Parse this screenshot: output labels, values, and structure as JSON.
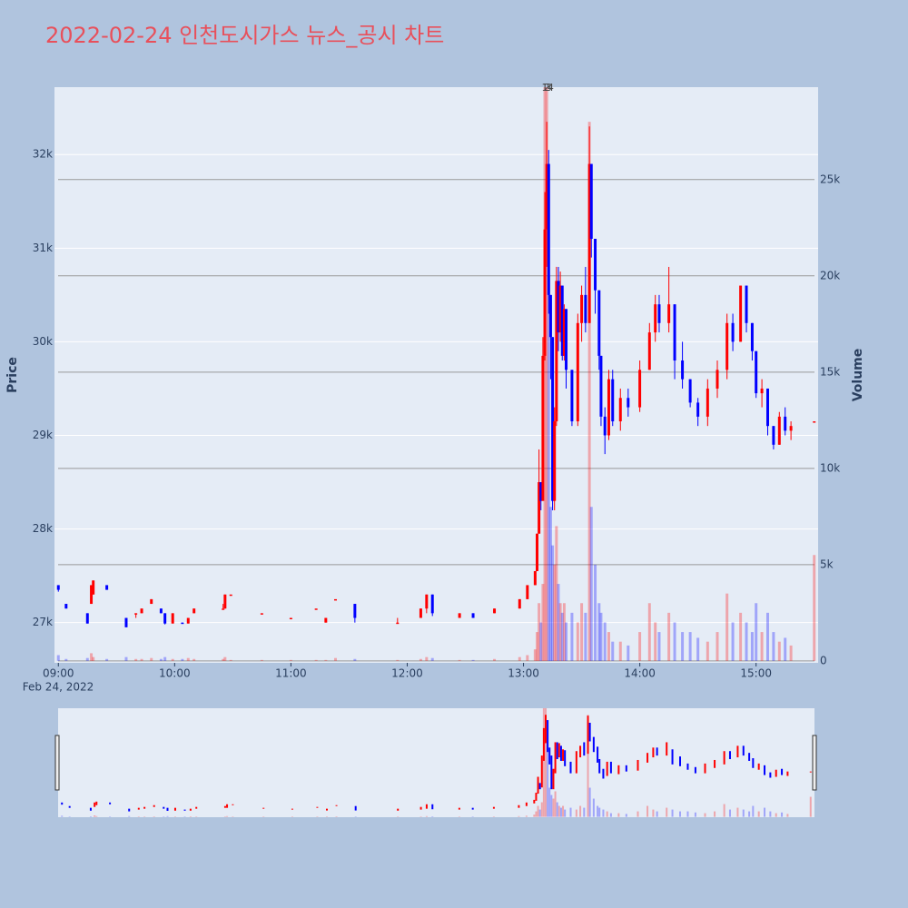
{
  "chart_data": {
    "type": "candlestick",
    "title": "2022-02-24 인천도시가스 뉴스_공시 차트",
    "y_title": "Price",
    "y2_title": "Volume",
    "x_date_label": "Feb 24, 2022",
    "increasing_color": "#ff0000",
    "decreasing_color": "#0000ff",
    "x": [
      "09:00",
      "09:04",
      "09:15",
      "09:17",
      "09:18",
      "09:25",
      "09:35",
      "09:40",
      "09:43",
      "09:48",
      "09:53",
      "09:55",
      "09:59",
      "10:04",
      "10:07",
      "10:10",
      "10:25",
      "10:26",
      "10:29",
      "10:45",
      "11:00",
      "11:13",
      "11:18",
      "11:23",
      "11:33",
      "11:55",
      "12:07",
      "12:10",
      "12:13",
      "12:27",
      "12:34",
      "12:45",
      "12:58",
      "13:02",
      "13:06",
      "13:07",
      "13:08",
      "13:09",
      "13:10",
      "13:11",
      "13:12",
      "13:13",
      "13:14",
      "13:15",
      "13:16",
      "13:17",
      "13:18",
      "13:19",
      "13:20",
      "13:21",
      "13:22",
      "13:25",
      "13:28",
      "13:30",
      "13:32",
      "13:34",
      "13:35",
      "13:37",
      "13:39",
      "13:40",
      "13:42",
      "13:44",
      "13:46",
      "13:50",
      "13:54",
      "14:00",
      "14:05",
      "14:08",
      "14:10",
      "14:15",
      "14:18",
      "14:22",
      "14:26",
      "14:30",
      "14:35",
      "14:40",
      "14:45",
      "14:48",
      "14:52",
      "14:55",
      "14:58",
      "15:00",
      "15:03",
      "15:06",
      "15:09",
      "15:12",
      "15:15",
      "15:18",
      "15:30"
    ],
    "open": [
      27400,
      27200,
      27100,
      27200,
      27300,
      27400,
      27050,
      27100,
      27100,
      27200,
      27150,
      27100,
      26990,
      27000,
      26990,
      27100,
      27150,
      27150,
      27300,
      27100,
      27050,
      27150,
      27000,
      27250,
      27200,
      27000,
      27050,
      27150,
      27300,
      27050,
      27100,
      27100,
      27150,
      27250,
      27400,
      27550,
      27950,
      28500,
      28300,
      29850,
      31200,
      31900,
      30500,
      30050,
      28300,
      29150,
      30650,
      30100,
      30600,
      29850,
      30350,
      29700,
      29150,
      30200,
      30500,
      30200,
      31900,
      31100,
      30550,
      29850,
      29200,
      29000,
      29600,
      29150,
      29400,
      29300,
      29700,
      30100,
      30400,
      30200,
      30400,
      29800,
      29600,
      29350,
      29200,
      29500,
      29700,
      30200,
      30000,
      30600,
      30200,
      29900,
      29450,
      29500,
      29100,
      28900,
      29200,
      29050,
      29150
    ],
    "high": [
      27400,
      27200,
      27100,
      27400,
      27450,
      27400,
      27050,
      27100,
      27150,
      27250,
      27150,
      27100,
      27100,
      27000,
      27050,
      27150,
      27200,
      27300,
      27300,
      27100,
      27050,
      27150,
      27050,
      27250,
      27200,
      27050,
      27150,
      27300,
      27300,
      27100,
      27100,
      27150,
      27250,
      27400,
      27550,
      27950,
      28850,
      28500,
      30050,
      31600,
      32350,
      32050,
      30500,
      30050,
      29300,
      30800,
      30800,
      30750,
      30600,
      30400,
      30350,
      29700,
      30300,
      30600,
      30800,
      32300,
      31900,
      31100,
      30550,
      29850,
      29300,
      29700,
      29700,
      29500,
      29500,
      29800,
      30200,
      30500,
      30500,
      30800,
      30400,
      30000,
      29600,
      29400,
      29600,
      29800,
      30300,
      30300,
      30600,
      30600,
      30200,
      29900,
      29600,
      29500,
      29100,
      29250,
      29300,
      29150,
      29150
    ],
    "low": [
      27330,
      27150,
      26990,
      27200,
      27300,
      27350,
      26950,
      27050,
      27100,
      27200,
      27100,
      26980,
      26990,
      26990,
      26990,
      27100,
      27150,
      27150,
      27300,
      27100,
      27050,
      27150,
      27000,
      27250,
      27000,
      26990,
      27050,
      27100,
      27070,
      27050,
      27050,
      27100,
      27150,
      27250,
      27400,
      27550,
      27950,
      28200,
      28300,
      29800,
      30800,
      30300,
      29600,
      28200,
      28200,
      29100,
      29900,
      30000,
      29800,
      29800,
      29500,
      29100,
      29100,
      30000,
      30100,
      30200,
      30900,
      30300,
      29700,
      29100,
      28800,
      28950,
      29100,
      29050,
      29200,
      29250,
      29700,
      30000,
      30100,
      30100,
      29600,
      29500,
      29300,
      29100,
      29100,
      29400,
      29600,
      29900,
      30000,
      30100,
      29800,
      29400,
      29300,
      29000,
      28850,
      28900,
      29000,
      28950,
      29150
    ],
    "close": [
      27350,
      27150,
      26990,
      27400,
      27450,
      27350,
      26950,
      27100,
      27150,
      27250,
      27100,
      26990,
      27100,
      26990,
      27050,
      27150,
      27150,
      27300,
      27300,
      27100,
      27050,
      27150,
      27050,
      27250,
      27050,
      27000,
      27150,
      27300,
      27100,
      27100,
      27050,
      27150,
      27250,
      27400,
      27550,
      27950,
      28500,
      28300,
      29850,
      31200,
      31900,
      30500,
      30050,
      28300,
      29150,
      30650,
      30100,
      30600,
      29850,
      30350,
      29700,
      29150,
      30200,
      30500,
      30200,
      31900,
      31100,
      30550,
      29850,
      29200,
      29000,
      29600,
      29150,
      29400,
      29300,
      29700,
      30100,
      30400,
      30200,
      30400,
      29800,
      29600,
      29350,
      29200,
      29500,
      29700,
      30200,
      30000,
      30600,
      30200,
      29900,
      29450,
      29500,
      29100,
      28900,
      29200,
      29050,
      29100,
      29150
    ],
    "volume": [
      300,
      100,
      150,
      400,
      200,
      100,
      200,
      100,
      100,
      150,
      100,
      200,
      100,
      100,
      150,
      100,
      100,
      200,
      50,
      50,
      50,
      50,
      50,
      150,
      100,
      50,
      100,
      200,
      150,
      50,
      50,
      100,
      200,
      300,
      600,
      1500,
      3000,
      2000,
      4000,
      30000,
      30000,
      20000,
      8000,
      6000,
      5000,
      7000,
      4000,
      3000,
      2500,
      3000,
      2000,
      2500,
      2000,
      3000,
      2500,
      28000,
      8000,
      5000,
      3000,
      2500,
      2000,
      1500,
      1000,
      1000,
      800,
      1500,
      3000,
      2000,
      1500,
      2500,
      2000,
      1500,
      1500,
      1200,
      1000,
      1500,
      3500,
      2000,
      2500,
      2000,
      1500,
      3000,
      1500,
      2500,
      1500,
      1000,
      1200,
      800,
      5500
    ],
    "annotations": [
      {
        "x": "13:11",
        "text": "1"
      },
      {
        "x": "13:12",
        "text": "2"
      },
      {
        "x": "13:13",
        "text": "3"
      },
      {
        "x": "13:14",
        "text": "4"
      }
    ],
    "xlim": [
      "08:58",
      "15:32"
    ],
    "xticks": [
      "09:00",
      "10:00",
      "11:00",
      "12:00",
      "13:00",
      "14:00",
      "15:00"
    ],
    "ylim": [
      26570,
      32720
    ],
    "yticks": [
      {
        "value": 27000,
        "label": "27k"
      },
      {
        "value": 28000,
        "label": "28k"
      },
      {
        "value": 29000,
        "label": "29k"
      },
      {
        "value": 30000,
        "label": "30k"
      },
      {
        "value": 31000,
        "label": "31k"
      },
      {
        "value": 32000,
        "label": "32k"
      }
    ],
    "y2lim": [
      -100,
      29800
    ],
    "y2ticks": [
      0,
      {
        "value": 5000,
        "label": "5k"
      },
      {
        "value": 10000,
        "label": "10k"
      },
      {
        "value": 15000,
        "label": "15k"
      },
      {
        "value": 20000,
        "label": "20k"
      },
      {
        "value": 25000,
        "label": "25k"
      }
    ],
    "grid": true
  }
}
